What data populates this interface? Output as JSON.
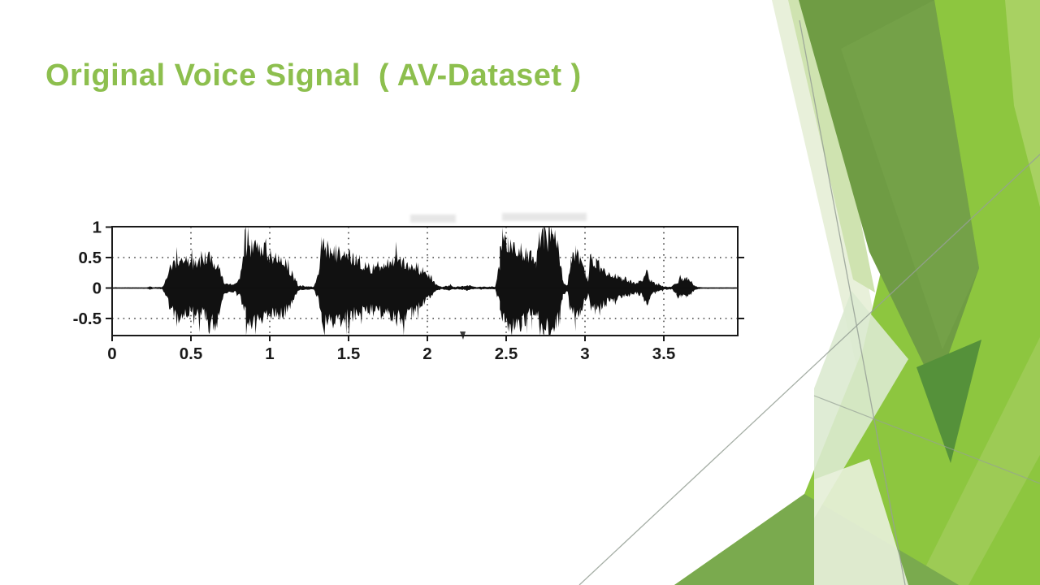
{
  "slide": {
    "title": "Original Voice Signal  ( AV-Dataset )",
    "title_color": "#8dbf4e",
    "background": "#ffffff"
  },
  "chart_data": {
    "type": "area",
    "title": "Original Voice Signal (AV-Dataset)",
    "description": "Speech waveform: amplitude envelope vs time in seconds, rendered as filled black oscillogram",
    "xlabel": "",
    "ylabel": "",
    "xlim": [
      0,
      3.97
    ],
    "ylim": [
      -0.78,
      1
    ],
    "x_ticks": [
      0,
      0.5,
      1,
      1.5,
      2,
      2.5,
      3,
      3.5
    ],
    "x_tick_labels": [
      "0",
      "0.5",
      "1",
      "1.5",
      "2",
      "2.5",
      "3",
      "3.5"
    ],
    "y_ticks": [
      1,
      0.5,
      0,
      -0.5
    ],
    "y_tick_labels": [
      "1",
      "0.5",
      "0",
      "-0.5"
    ],
    "grid": "dotted",
    "legend": "none",
    "signal_color": "#111111",
    "axis_color": "#1a1a1a",
    "envelope": [
      [
        0.0,
        0.01,
        -0.01
      ],
      [
        0.22,
        0.01,
        -0.01
      ],
      [
        0.24,
        0.03,
        -0.03
      ],
      [
        0.26,
        0.01,
        -0.01
      ],
      [
        0.32,
        0.02,
        -0.02
      ],
      [
        0.35,
        0.2,
        -0.18
      ],
      [
        0.38,
        0.45,
        -0.4
      ],
      [
        0.41,
        0.5,
        -0.55
      ],
      [
        0.44,
        0.48,
        -0.45
      ],
      [
        0.47,
        0.55,
        -0.42
      ],
      [
        0.5,
        0.44,
        -0.45
      ],
      [
        0.53,
        0.48,
        -0.42
      ],
      [
        0.56,
        0.52,
        -0.48
      ],
      [
        0.6,
        0.55,
        -0.52
      ],
      [
        0.63,
        0.5,
        -0.58
      ],
      [
        0.66,
        0.42,
        -0.62
      ],
      [
        0.69,
        0.28,
        -0.3
      ],
      [
        0.71,
        0.1,
        -0.1
      ],
      [
        0.74,
        0.06,
        -0.06
      ],
      [
        0.78,
        0.07,
        -0.07
      ],
      [
        0.81,
        0.15,
        -0.12
      ],
      [
        0.83,
        0.45,
        -0.35
      ],
      [
        0.85,
        0.78,
        -0.55
      ],
      [
        0.88,
        0.72,
        -0.6
      ],
      [
        0.91,
        0.68,
        -0.58
      ],
      [
        0.94,
        0.62,
        -0.55
      ],
      [
        0.98,
        0.58,
        -0.52
      ],
      [
        1.02,
        0.55,
        -0.5
      ],
      [
        1.06,
        0.5,
        -0.46
      ],
      [
        1.1,
        0.44,
        -0.42
      ],
      [
        1.13,
        0.32,
        -0.3
      ],
      [
        1.16,
        0.15,
        -0.15
      ],
      [
        1.18,
        0.04,
        -0.04
      ],
      [
        1.28,
        0.02,
        -0.02
      ],
      [
        1.31,
        0.25,
        -0.2
      ],
      [
        1.33,
        0.78,
        -0.55
      ],
      [
        1.36,
        0.7,
        -0.72
      ],
      [
        1.39,
        0.58,
        -0.6
      ],
      [
        1.42,
        0.66,
        -0.55
      ],
      [
        1.45,
        0.6,
        -0.58
      ],
      [
        1.49,
        0.62,
        -0.52
      ],
      [
        1.53,
        0.52,
        -0.48
      ],
      [
        1.57,
        0.44,
        -0.42
      ],
      [
        1.61,
        0.38,
        -0.38
      ],
      [
        1.65,
        0.35,
        -0.42
      ],
      [
        1.7,
        0.4,
        -0.46
      ],
      [
        1.75,
        0.46,
        -0.5
      ],
      [
        1.8,
        0.5,
        -0.54
      ],
      [
        1.85,
        0.48,
        -0.56
      ],
      [
        1.9,
        0.42,
        -0.46
      ],
      [
        1.94,
        0.36,
        -0.36
      ],
      [
        1.98,
        0.28,
        -0.24
      ],
      [
        2.02,
        0.18,
        -0.14
      ],
      [
        2.06,
        0.06,
        -0.05
      ],
      [
        2.09,
        0.02,
        -0.02
      ],
      [
        2.14,
        0.05,
        -0.04
      ],
      [
        2.17,
        0.02,
        -0.02
      ],
      [
        2.26,
        0.04,
        -0.03
      ],
      [
        2.3,
        0.02,
        -0.02
      ],
      [
        2.43,
        0.02,
        -0.02
      ],
      [
        2.46,
        0.45,
        -0.3
      ],
      [
        2.48,
        0.92,
        -0.55
      ],
      [
        2.51,
        0.86,
        -0.62
      ],
      [
        2.54,
        0.78,
        -0.7
      ],
      [
        2.57,
        0.68,
        -0.72
      ],
      [
        2.6,
        0.56,
        -0.62
      ],
      [
        2.63,
        0.64,
        -0.55
      ],
      [
        2.66,
        0.52,
        -0.48
      ],
      [
        2.69,
        0.4,
        -0.5
      ],
      [
        2.71,
        0.8,
        -0.6
      ],
      [
        2.74,
        0.96,
        -0.72
      ],
      [
        2.78,
        0.94,
        -0.76
      ],
      [
        2.81,
        0.88,
        -0.7
      ],
      [
        2.84,
        0.55,
        -0.55
      ],
      [
        2.86,
        0.12,
        -0.12
      ],
      [
        2.89,
        0.05,
        -0.05
      ],
      [
        2.91,
        0.55,
        -0.38
      ],
      [
        2.94,
        0.62,
        -0.45
      ],
      [
        2.97,
        0.5,
        -0.4
      ],
      [
        3.0,
        0.28,
        -0.24
      ],
      [
        3.02,
        0.1,
        -0.1
      ],
      [
        3.04,
        0.6,
        -0.42
      ],
      [
        3.07,
        0.48,
        -0.38
      ],
      [
        3.1,
        0.38,
        -0.32
      ],
      [
        3.14,
        0.28,
        -0.26
      ],
      [
        3.18,
        0.24,
        -0.22
      ],
      [
        3.23,
        0.17,
        -0.16
      ],
      [
        3.28,
        0.12,
        -0.12
      ],
      [
        3.33,
        0.09,
        -0.09
      ],
      [
        3.37,
        0.14,
        -0.14
      ],
      [
        3.39,
        0.36,
        -0.36
      ],
      [
        3.41,
        0.14,
        -0.14
      ],
      [
        3.45,
        0.07,
        -0.07
      ],
      [
        3.5,
        0.03,
        -0.03
      ],
      [
        3.55,
        0.02,
        -0.02
      ],
      [
        3.58,
        0.1,
        -0.1
      ],
      [
        3.61,
        0.16,
        -0.15
      ],
      [
        3.64,
        0.17,
        -0.16
      ],
      [
        3.67,
        0.12,
        -0.11
      ],
      [
        3.7,
        0.03,
        -0.03
      ],
      [
        3.75,
        0.01,
        -0.01
      ],
      [
        3.97,
        0.01,
        -0.01
      ]
    ]
  },
  "decor": {
    "colors": {
      "bright": "#8dc63f",
      "olive": "#6f9c44",
      "olive_facet": "#79a54d",
      "dark": "#55913a",
      "light_band": "#a8d162",
      "light_sliver": "#9dcb55",
      "bottom_wedge": "#7aaa4e",
      "pale1": "#e8f0da",
      "pale2": "#cfe3b0",
      "pale3": "#dcead0",
      "pale4": "#e9f1dd",
      "line": "#96a096"
    }
  }
}
